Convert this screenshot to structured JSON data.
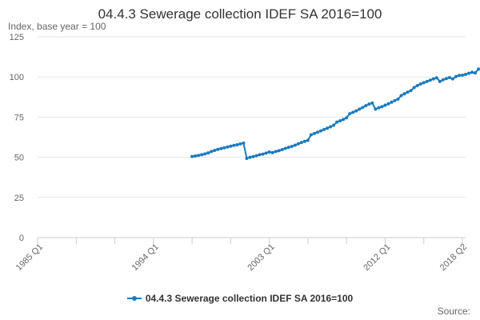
{
  "chart_data": {
    "type": "line",
    "title": "04.4.3 Sewerage collection IDEF SA 2016=100",
    "ylabel": "Index, base year = 100",
    "xlabel": "",
    "x_ticks": [
      "1985 Q1",
      "1994 Q1",
      "2003 Q1",
      "2012 Q1",
      "2018 Q2"
    ],
    "y_ticks": [
      0,
      25,
      50,
      75,
      100,
      125
    ],
    "ylim": [
      0,
      125
    ],
    "xlim": [
      "1985 Q1",
      "2018 Q2"
    ],
    "grid": "horizontal",
    "legend_position": "bottom",
    "series": [
      {
        "name": "04.4.3 Sewerage collection IDEF SA 2016=100",
        "color": "#1a7abf",
        "points": [
          [
            "1997 Q1",
            50.5
          ],
          [
            "1997 Q2",
            50.8
          ],
          [
            "1997 Q3",
            51.2
          ],
          [
            "1997 Q4",
            51.6
          ],
          [
            "1998 Q1",
            52.1
          ],
          [
            "1998 Q2",
            52.7
          ],
          [
            "1998 Q3",
            53.6
          ],
          [
            "1998 Q4",
            54.3
          ],
          [
            "1999 Q1",
            54.9
          ],
          [
            "1999 Q2",
            55.4
          ],
          [
            "1999 Q3",
            55.9
          ],
          [
            "1999 Q4",
            56.4
          ],
          [
            "2000 Q1",
            56.9
          ],
          [
            "2000 Q2",
            57.4
          ],
          [
            "2000 Q3",
            57.8
          ],
          [
            "2000 Q4",
            58.3
          ],
          [
            "2001 Q1",
            58.8
          ],
          [
            "2001 Q2",
            49.3
          ],
          [
            "2001 Q3",
            50.0
          ],
          [
            "2001 Q4",
            50.4
          ],
          [
            "2002 Q1",
            51.0
          ],
          [
            "2002 Q2",
            51.6
          ],
          [
            "2002 Q3",
            52.0
          ],
          [
            "2002 Q4",
            52.6
          ],
          [
            "2003 Q1",
            53.3
          ],
          [
            "2003 Q2",
            52.9
          ],
          [
            "2003 Q3",
            53.6
          ],
          [
            "2003 Q4",
            54.1
          ],
          [
            "2004 Q1",
            54.8
          ],
          [
            "2004 Q2",
            55.5
          ],
          [
            "2004 Q3",
            56.2
          ],
          [
            "2004 Q4",
            56.8
          ],
          [
            "2005 Q1",
            57.5
          ],
          [
            "2005 Q2",
            58.4
          ],
          [
            "2005 Q3",
            59.2
          ],
          [
            "2005 Q4",
            59.9
          ],
          [
            "2006 Q1",
            60.6
          ],
          [
            "2006 Q2",
            64.0
          ],
          [
            "2006 Q3",
            64.8
          ],
          [
            "2006 Q4",
            65.6
          ],
          [
            "2007 Q1",
            66.4
          ],
          [
            "2007 Q2",
            67.3
          ],
          [
            "2007 Q3",
            68.1
          ],
          [
            "2007 Q4",
            69.0
          ],
          [
            "2008 Q1",
            69.9
          ],
          [
            "2008 Q2",
            71.9
          ],
          [
            "2008 Q3",
            72.7
          ],
          [
            "2008 Q4",
            73.5
          ],
          [
            "2009 Q1",
            74.6
          ],
          [
            "2009 Q2",
            77.1
          ],
          [
            "2009 Q3",
            78.0
          ],
          [
            "2009 Q4",
            78.9
          ],
          [
            "2010 Q1",
            79.9
          ],
          [
            "2010 Q2",
            81.0
          ],
          [
            "2010 Q3",
            82.1
          ],
          [
            "2010 Q4",
            83.1
          ],
          [
            "2011 Q1",
            83.8
          ],
          [
            "2011 Q2",
            80.0
          ],
          [
            "2011 Q3",
            80.8
          ],
          [
            "2011 Q4",
            81.5
          ],
          [
            "2012 Q1",
            82.4
          ],
          [
            "2012 Q2",
            83.3
          ],
          [
            "2012 Q3",
            84.3
          ],
          [
            "2012 Q4",
            85.3
          ],
          [
            "2013 Q1",
            86.2
          ],
          [
            "2013 Q2",
            88.4
          ],
          [
            "2013 Q3",
            89.5
          ],
          [
            "2013 Q4",
            90.6
          ],
          [
            "2014 Q1",
            91.5
          ],
          [
            "2014 Q2",
            93.4
          ],
          [
            "2014 Q3",
            94.6
          ],
          [
            "2014 Q4",
            95.6
          ],
          [
            "2015 Q1",
            96.4
          ],
          [
            "2015 Q2",
            97.2
          ],
          [
            "2015 Q3",
            98.0
          ],
          [
            "2015 Q4",
            98.8
          ],
          [
            "2016 Q1",
            99.5
          ],
          [
            "2016 Q2",
            97.2
          ],
          [
            "2016 Q3",
            98.2
          ],
          [
            "2016 Q4",
            99.0
          ],
          [
            "2017 Q1",
            99.6
          ],
          [
            "2017 Q2",
            98.8
          ],
          [
            "2017 Q3",
            100.2
          ],
          [
            "2017 Q4",
            101.0
          ],
          [
            "2018 Q1",
            101.1
          ],
          [
            "2018 Q2",
            101.6
          ],
          [
            "2018 Q3",
            102.3
          ],
          [
            "2018 Q4",
            102.9
          ],
          [
            "2019 Q1",
            102.5
          ],
          [
            "2019 Q2",
            104.9
          ]
        ]
      }
    ]
  },
  "footer": {
    "source_label": "Source:"
  }
}
